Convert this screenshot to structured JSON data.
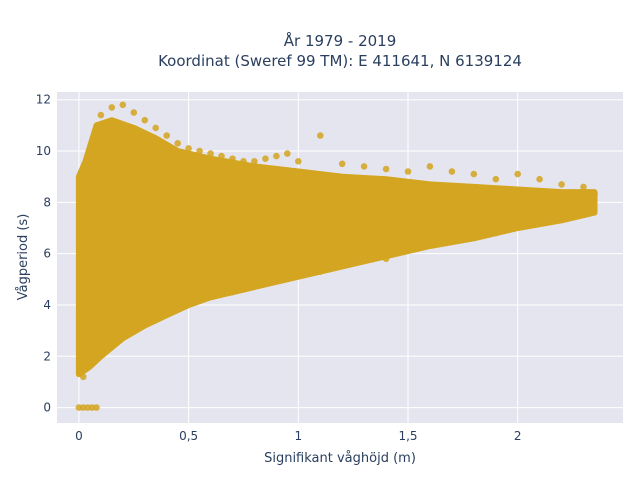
{
  "chart_data": {
    "type": "scatter",
    "title_line1": "År 1979 - 2019",
    "title_line2": "Koordinat (Sweref 99 TM): E 411641, N 6139124",
    "xlabel": "Signifikant våghöjd (m)",
    "ylabel": "Vågperiod (s)",
    "xlim": [
      -0.1,
      2.48
    ],
    "ylim": [
      -0.6,
      12.3
    ],
    "x_ticks": [
      0,
      0.5,
      1,
      1.5,
      2
    ],
    "x_tick_labels": [
      "0",
      "0,5",
      "1",
      "1,5",
      "2"
    ],
    "y_ticks": [
      0,
      2,
      4,
      6,
      8,
      10,
      12
    ],
    "y_tick_labels": [
      "0",
      "2",
      "4",
      "6",
      "8",
      "10",
      "12"
    ],
    "grid": true,
    "series": [
      {
        "color": "#d4a520",
        "x": [
          0.0,
          0.02,
          0.04,
          0.06,
          0.08,
          0.02,
          0.04,
          0.06,
          0.08,
          0.05,
          0.1,
          0.15,
          0.2,
          0.25,
          0.3,
          0.35,
          0.1,
          0.15,
          0.2,
          0.25,
          0.3,
          0.35,
          0.4,
          0.45,
          0.5,
          0.55,
          0.6,
          0.65,
          0.7,
          0.75,
          0.8,
          0.85,
          0.9,
          0.95,
          1.0,
          1.1,
          1.2,
          1.3,
          1.4,
          1.5,
          1.6,
          1.7,
          1.8,
          1.9,
          2.0,
          2.1,
          2.2,
          2.3,
          2.35,
          0.1,
          0.2,
          0.3,
          0.4,
          0.5,
          0.6,
          0.7,
          0.8,
          0.9,
          1.0,
          1.1,
          1.2,
          1.3,
          1.4,
          1.5,
          1.6,
          1.7,
          1.8,
          1.9,
          2.0,
          2.1,
          2.2,
          0.12,
          0.18,
          0.25,
          0.3,
          0.7,
          1.1,
          1.4,
          1.9,
          2.25
        ],
        "y": [
          0.0,
          0.0,
          0.0,
          0.0,
          0.0,
          1.2,
          1.6,
          2.0,
          2.4,
          2.0,
          2.6,
          3.0,
          3.4,
          3.7,
          4.0,
          4.2,
          11.4,
          11.7,
          11.8,
          11.5,
          11.2,
          10.9,
          10.6,
          10.3,
          10.1,
          10.0,
          9.9,
          9.8,
          9.7,
          9.6,
          9.6,
          9.7,
          9.8,
          9.9,
          9.6,
          10.6,
          9.5,
          9.4,
          9.3,
          9.2,
          9.4,
          9.2,
          9.1,
          8.9,
          9.1,
          8.9,
          8.7,
          8.6,
          8.3,
          6.0,
          6.2,
          6.4,
          6.6,
          6.8,
          6.7,
          6.5,
          6.4,
          6.3,
          6.4,
          6.5,
          6.6,
          6.7,
          6.8,
          6.9,
          7.0,
          7.1,
          7.2,
          7.3,
          7.4,
          7.5,
          7.6,
          8.0,
          8.5,
          7.5,
          7.0,
          4.5,
          5.3,
          5.8,
          6.8,
          7.7
        ]
      }
    ]
  }
}
